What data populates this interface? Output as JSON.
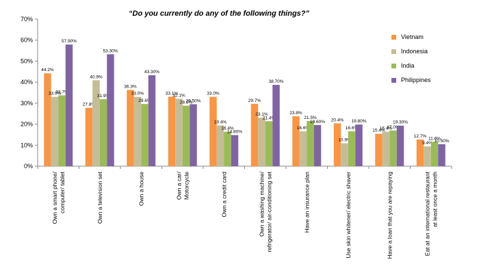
{
  "chart_data": {
    "type": "bar",
    "title": "“Do you currently do any of the following things?”",
    "categories": [
      "Own a smart phone/ computer/ tablet",
      "Own a television set",
      "Own a house",
      "Own a car/ Motorcycle",
      "Own a credit card",
      "Own a washing machine/ refrigerator/ air-conditioning set",
      "Have an insurance plan",
      "Use skin whitener/ electric shaver",
      "Have a loan that you are repaying",
      "Eat at an international restaurant at least once a month"
    ],
    "series": [
      {
        "name": "Vietnam",
        "color": "#F79646",
        "values": [
          44.2,
          27.8,
          36.3,
          33.1,
          33.0,
          29.7,
          23.8,
          20.4,
          15.4,
          12.7
        ],
        "labels": [
          "44.2%",
          "27.8%",
          "36.3%",
          "33.1%",
          "33.0%",
          "29.7%",
          "23.8%",
          "20.4%",
          "15.4%",
          "12.7%"
        ]
      },
      {
        "name": "Indonesia",
        "color": "#C4BD97",
        "values": [
          33.0,
          40.9,
          33.0,
          32.1,
          19.4,
          23.1,
          16.6,
          10.9,
          16.4,
          9.4
        ],
        "labels": [
          "33.0%",
          "40.9%",
          "33.0%",
          "32.1%",
          "19.4%",
          "23.1%",
          "16.6%",
          "10.9%",
          "16.4%",
          "9.4%"
        ]
      },
      {
        "name": "India",
        "color": "#9BBB59",
        "values": [
          33.7,
          31.9,
          29.6,
          28.8,
          16.4,
          21.4,
          21.5,
          16.6,
          17.0,
          11.6
        ],
        "labels": [
          "33.7%",
          "31.9%",
          "29.6%",
          "28.8%",
          "16.4%",
          "21.4%",
          "21.5%",
          "16.6%",
          "17.0%",
          "11.6%"
        ]
      },
      {
        "name": "Philippines",
        "color": "#8064A2",
        "values": [
          57.9,
          53.3,
          43.3,
          29.5,
          14.8,
          38.7,
          19.6,
          19.8,
          19.3,
          10.5
        ],
        "labels": [
          "57.90%",
          "53.30%",
          "43.30%",
          "29.50%",
          "14.80%",
          "38.70%",
          "19.60%",
          "19.80%",
          "19.30%",
          "10.50%"
        ]
      }
    ],
    "category_label_lines": [
      [
        "Own a smart phone/",
        "computer/ tablet"
      ],
      [
        "Own a television set"
      ],
      [
        "Own a house"
      ],
      [
        "Own a car/",
        "Motorcycle"
      ],
      [
        "Own a credit card"
      ],
      [
        "Own a washing machine/",
        "refrigerator/ air-conditioning set"
      ],
      [
        "Have an insurance plan"
      ],
      [
        "Use skin whitener/ electric shaver"
      ],
      [
        "Have a loan that you are repaying"
      ],
      [
        "Eat at an international restaurant",
        "at least once a month"
      ]
    ],
    "yticks": [
      "0%",
      "10%",
      "20%",
      "30%",
      "40%",
      "50%",
      "60%",
      "70%"
    ],
    "ylim": [
      0,
      70
    ],
    "grid": false,
    "legend_position": "right"
  }
}
